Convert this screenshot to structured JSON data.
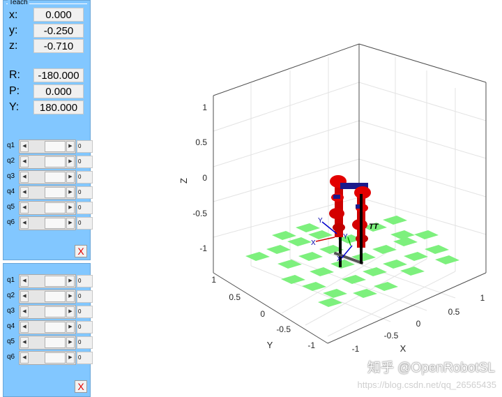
{
  "teach_panel": {
    "title": "Teach",
    "position": [
      {
        "label": "x:",
        "value": "0.000"
      },
      {
        "label": "y:",
        "value": "-0.250"
      },
      {
        "label": "z:",
        "value": "-0.710"
      }
    ],
    "orientation": [
      {
        "label": "R:",
        "value": "-180.000"
      },
      {
        "label": "P:",
        "value": "0.000"
      },
      {
        "label": "Y:",
        "value": "180.000"
      }
    ],
    "joints": [
      {
        "label": "q1",
        "value": "0"
      },
      {
        "label": "q2",
        "value": "0"
      },
      {
        "label": "q3",
        "value": "0"
      },
      {
        "label": "q4",
        "value": "0"
      },
      {
        "label": "q5",
        "value": "0"
      },
      {
        "label": "q6",
        "value": "0"
      }
    ],
    "close_label": "X"
  },
  "joint_panel": {
    "joints": [
      {
        "label": "q1",
        "value": "0"
      },
      {
        "label": "q2",
        "value": "0"
      },
      {
        "label": "q3",
        "value": "0"
      },
      {
        "label": "q4",
        "value": "0"
      },
      {
        "label": "q5",
        "value": "0"
      },
      {
        "label": "q6",
        "value": "0"
      }
    ],
    "close_label": "X"
  },
  "plot": {
    "z_ticks": [
      "1",
      "0.5",
      "0",
      "-0.5",
      "-1"
    ],
    "y_ticks": [
      "1",
      "0.5",
      "0",
      "-0.5",
      "-1"
    ],
    "x_ticks": [
      "-1",
      "-0.5",
      "0",
      "0.5",
      "1"
    ],
    "zlabel": "Z",
    "ylabel": "Y",
    "xlabel": "X",
    "robot_label": "TT",
    "frame_axis_labels": [
      "Y",
      "X",
      "Y",
      "X"
    ]
  },
  "watermark": {
    "text": "知乎 @OpenRobotSL",
    "url": "https://blog.csdn.net/qq_26565435"
  }
}
